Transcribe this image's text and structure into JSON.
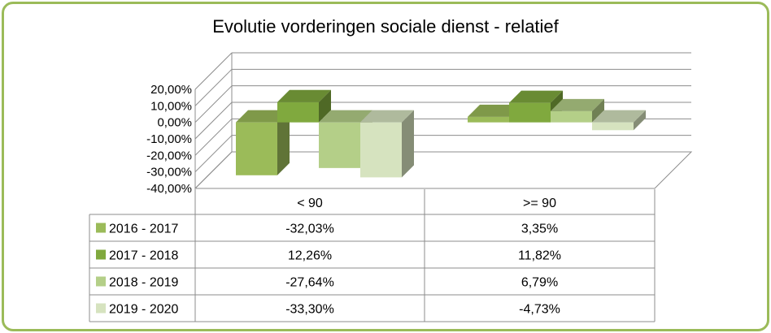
{
  "chart_data": {
    "type": "bar",
    "title": "Evolutie vorderingen sociale dienst - relatief",
    "categories": [
      "< 90",
      ">= 90"
    ],
    "series": [
      {
        "name": "2016 - 2017",
        "values": [
          -32.03,
          3.35
        ],
        "labels": [
          "-32,03%",
          "3,35%"
        ],
        "color": "#9bbb59"
      },
      {
        "name": "2017 - 2018",
        "values": [
          12.26,
          11.82
        ],
        "labels": [
          "12,26%",
          "11,82%"
        ],
        "color": "#80a93e"
      },
      {
        "name": "2018 - 2019",
        "values": [
          -27.64,
          6.79
        ],
        "labels": [
          "-27,64%",
          "6,79%"
        ],
        "color": "#b4cf88"
      },
      {
        "name": "2019 - 2020",
        "values": [
          -33.3,
          -4.73
        ],
        "labels": [
          "-33,30%",
          "-4,73%"
        ],
        "color": "#d6e3bf"
      }
    ],
    "yticks": [
      "20,00%",
      "10,00%",
      "0,00%",
      "-10,00%",
      "-20,00%",
      "-30,00%",
      "-40,00%"
    ],
    "ylim": [
      -40,
      20
    ],
    "data_table": true,
    "legend": "in data table"
  }
}
